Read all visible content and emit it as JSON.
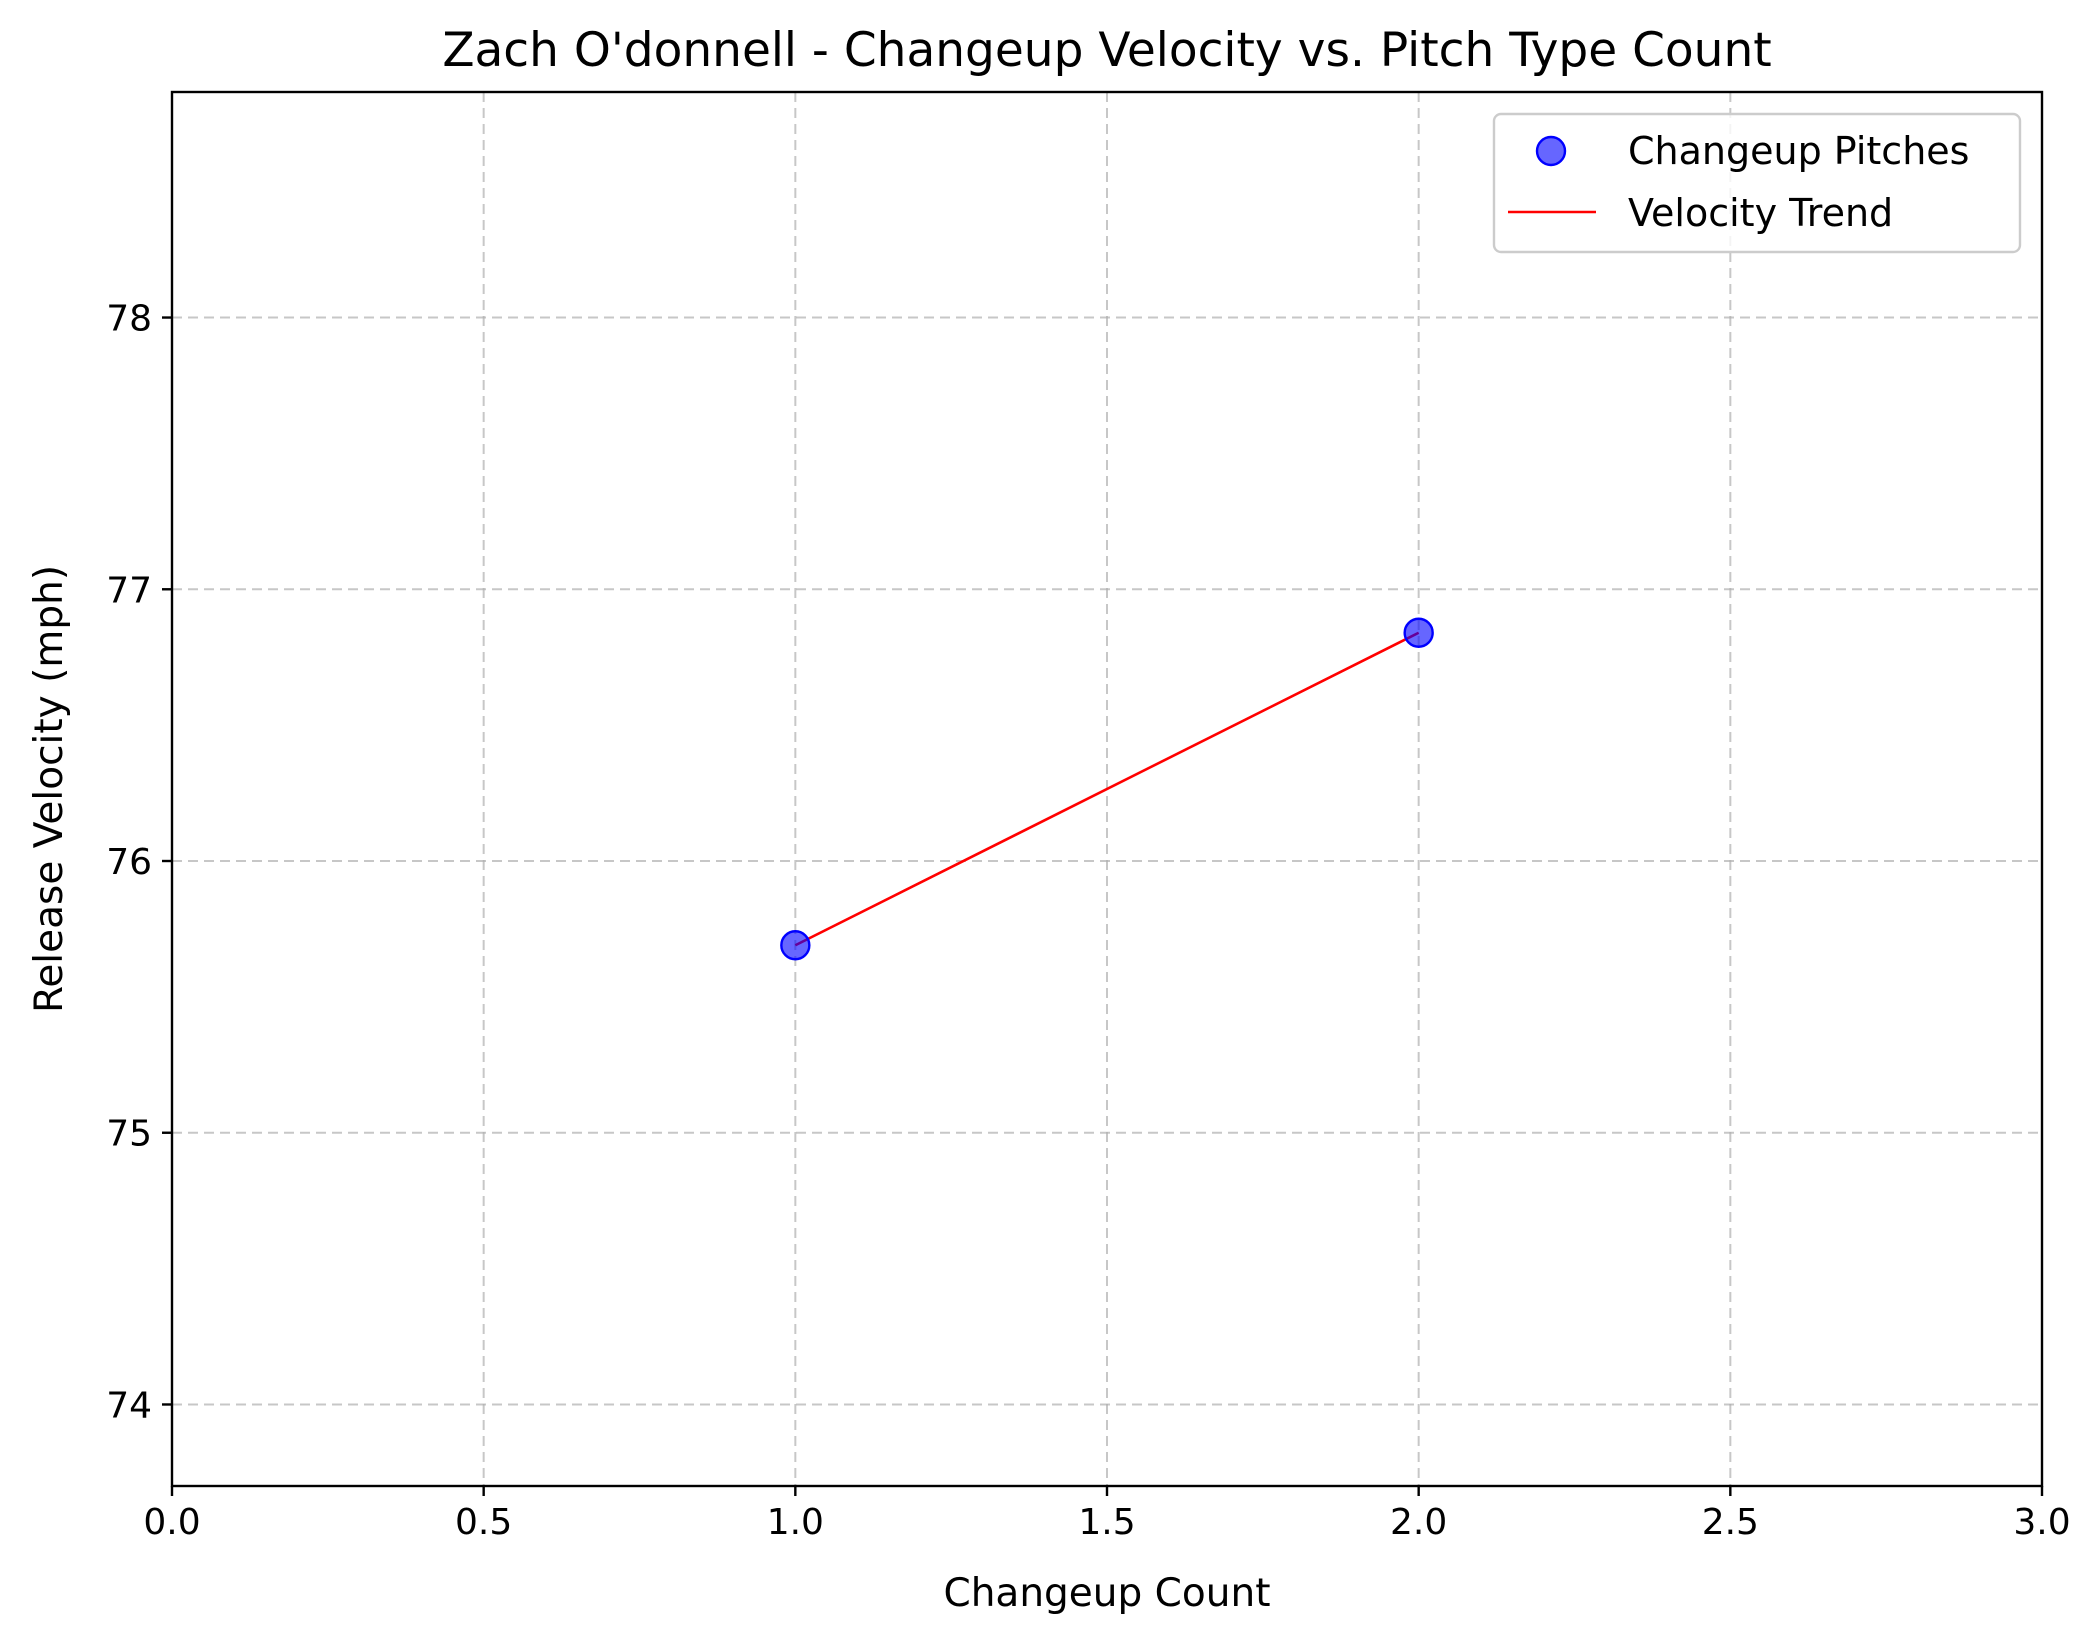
{
  "chart_data": {
    "type": "scatter",
    "title": "Zach O'donnell - Changeup Velocity vs. Pitch Type Count",
    "xlabel": "Changeup Count",
    "ylabel": "Release Velocity (mph)",
    "xlim": [
      0.0,
      3.0
    ],
    "ylim": [
      73.7,
      78.83
    ],
    "x_ticks": [
      "0.0",
      "0.5",
      "1.0",
      "1.5",
      "2.0",
      "2.5",
      "3.0"
    ],
    "y_ticks": [
      "74",
      "75",
      "76",
      "77",
      "78"
    ],
    "grid": true,
    "legend_position": "top-right",
    "series": [
      {
        "name": "Changeup Pitches",
        "kind": "scatter",
        "color": "#0000ff",
        "points": [
          {
            "x": 1.0,
            "y": 75.69
          },
          {
            "x": 2.0,
            "y": 76.84
          }
        ]
      },
      {
        "name": "Velocity Trend",
        "kind": "line",
        "color": "#ff0000",
        "points": [
          {
            "x": 1.0,
            "y": 75.69
          },
          {
            "x": 2.0,
            "y": 76.84
          }
        ]
      }
    ]
  }
}
